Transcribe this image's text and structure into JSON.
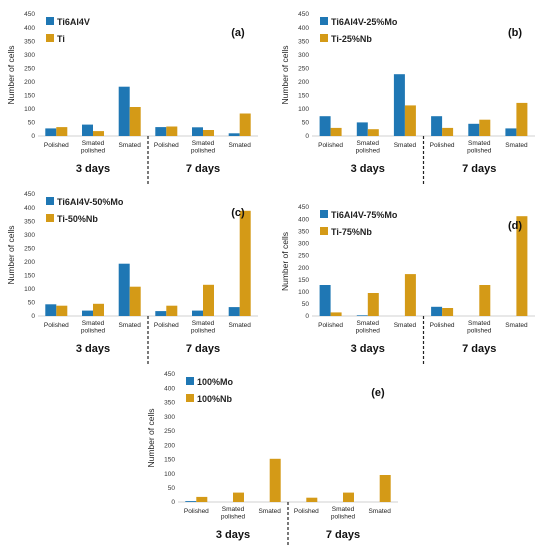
{
  "colors": {
    "series_1": "#1f77b4",
    "series_2": "#d49a17",
    "axis": "#d0d0d0"
  },
  "chart_data": [
    {
      "type": "bar",
      "label": "(a)",
      "ylabel": "Number of cells",
      "ylim": [
        0,
        450
      ],
      "yticks": [
        0,
        50,
        100,
        150,
        200,
        250,
        300,
        350,
        400,
        450
      ],
      "categories": [
        "Polished",
        "Smated polished",
        "Smated",
        "Polished",
        "Smated polished",
        "Smated"
      ],
      "periods": [
        "3 days",
        "7 days"
      ],
      "series": [
        {
          "name": "Ti6Al4V",
          "values": [
            28,
            42,
            182,
            33,
            32,
            10
          ]
        },
        {
          "name": "Ti",
          "values": [
            33,
            18,
            107,
            35,
            22,
            83
          ]
        }
      ]
    },
    {
      "type": "bar",
      "label": "(b)",
      "ylabel": "Number of cells",
      "ylim": [
        0,
        450
      ],
      "yticks": [
        0,
        50,
        100,
        150,
        200,
        250,
        300,
        350,
        400,
        450
      ],
      "categories": [
        "Polished",
        "Smated polished",
        "Smated",
        "Polished",
        "Smated polished",
        "Smated"
      ],
      "periods": [
        "3 days",
        "7 days"
      ],
      "series": [
        {
          "name": "Ti6Al4V-25%Mo",
          "values": [
            73,
            50,
            228,
            73,
            45,
            28
          ]
        },
        {
          "name": "Ti-25%Nb",
          "values": [
            30,
            25,
            113,
            30,
            60,
            122
          ]
        }
      ]
    },
    {
      "type": "bar",
      "label": "(c)",
      "ylabel": "Number of cells",
      "ylim": [
        0,
        450
      ],
      "yticks": [
        0,
        50,
        100,
        150,
        200,
        250,
        300,
        350,
        400,
        450
      ],
      "categories": [
        "Polished",
        "Smated polished",
        "Smated",
        "Polished",
        "Smated polished",
        "Smated"
      ],
      "periods": [
        "3 days",
        "7 days"
      ],
      "series": [
        {
          "name": "Ti6Al4V-50%Mo",
          "values": [
            43,
            20,
            193,
            18,
            20,
            33
          ]
        },
        {
          "name": "Ti-50%Nb",
          "values": [
            38,
            45,
            108,
            38,
            115,
            388
          ]
        }
      ]
    },
    {
      "type": "bar",
      "label": "(d)",
      "ylabel": "Number of cells",
      "ylim": [
        0,
        450
      ],
      "yticks": [
        0,
        50,
        100,
        150,
        200,
        250,
        300,
        350,
        400,
        450
      ],
      "categories": [
        "Polished",
        "Smated polished",
        "Smated",
        "Polished",
        "Smated polished",
        "Smated"
      ],
      "periods": [
        "3 days",
        "7 days"
      ],
      "series": [
        {
          "name": "Ti6Al4V-75%Mo",
          "values": [
            128,
            3,
            0,
            38,
            0,
            0
          ]
        },
        {
          "name": "Ti-75%Nb",
          "values": [
            15,
            95,
            173,
            33,
            128,
            412
          ]
        }
      ]
    },
    {
      "type": "bar",
      "label": "(e)",
      "ylabel": "Number of cells",
      "ylim": [
        0,
        450
      ],
      "yticks": [
        0,
        50,
        100,
        150,
        200,
        250,
        300,
        350,
        400,
        450
      ],
      "categories": [
        "Polished",
        "Smated polished",
        "Smated",
        "Polished",
        "Smated polished",
        "Smated"
      ],
      "periods": [
        "3 days",
        "7 days"
      ],
      "series": [
        {
          "name": "100%Mo",
          "values": [
            3,
            0,
            0,
            0,
            0,
            0
          ]
        },
        {
          "name": "100%Nb",
          "values": [
            18,
            33,
            152,
            15,
            33,
            95
          ]
        }
      ]
    }
  ]
}
